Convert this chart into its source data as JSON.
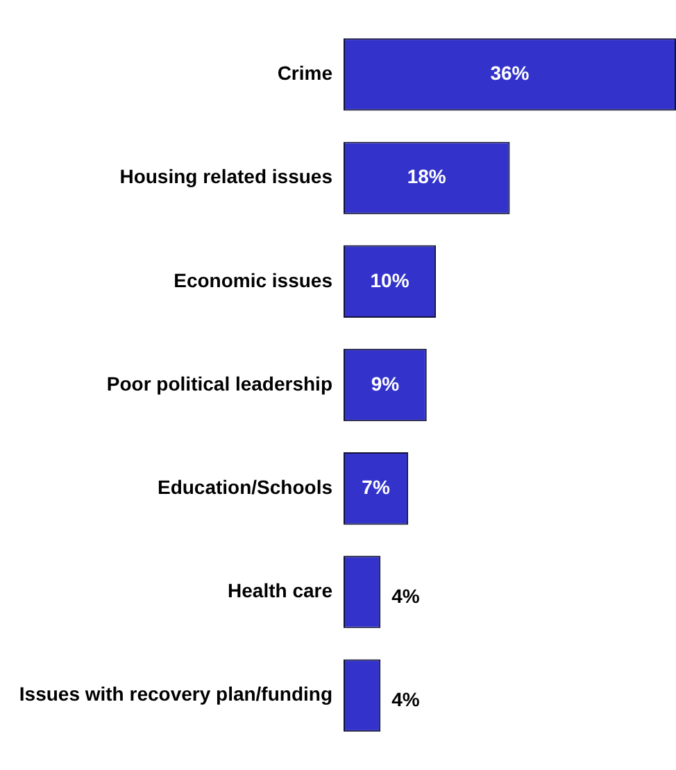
{
  "chart_data": {
    "type": "bar",
    "orientation": "horizontal",
    "categories": [
      "Crime",
      "Housing related issues",
      "Economic issues",
      "Poor political leadership",
      "Education/Schools",
      "Health care",
      "Issues with recovery plan/funding"
    ],
    "values": [
      36,
      18,
      10,
      9,
      7,
      4,
      4
    ],
    "value_labels": [
      "36%",
      "18%",
      "10%",
      "9%",
      "7%",
      "4%",
      "4%"
    ],
    "color": "#3333cc",
    "grid": false,
    "legend": false,
    "tick_labels": "y"
  }
}
